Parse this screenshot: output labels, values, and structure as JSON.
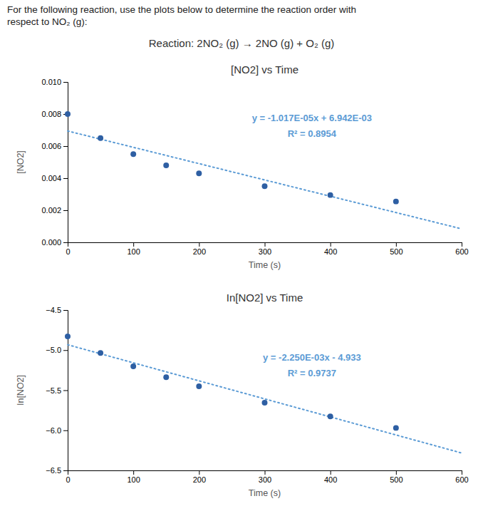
{
  "title": [
    "For the following reaction, use the plots below to determine the reaction order with",
    "respect to NO₂ (g):"
  ],
  "subtitle": "Reaction: 2NO₂ (g) → 2NO (g) + O₂ (g)",
  "chart_data": [
    {
      "type": "scatter",
      "title": "[NO2] vs Time",
      "x_label": "Time (s)",
      "y_label": "[NO2]",
      "series": [
        {
          "type": "scatter",
          "marker": "circle",
          "color": "#2e5fa3",
          "x": [
            0,
            50,
            100,
            150,
            200,
            300,
            400,
            500
          ],
          "values": [
            0.008,
            0.0065,
            0.0055,
            0.0048,
            0.0043,
            0.0035,
            0.00295,
            0.00255
          ]
        },
        {
          "type": "line",
          "line_style": "dotted",
          "color": "#5b9bd5",
          "x": [
            0,
            600
          ],
          "values": [
            0.006942,
            0.00084
          ]
        }
      ],
      "annotations": [
        "y = -1.017E-05x + 6.942E-03",
        "R² = 0.8954"
      ],
      "xlim": [
        0,
        600
      ],
      "ylim": [
        0.0,
        0.01
      ],
      "xticks": [
        0,
        100,
        200,
        300,
        400,
        500,
        600
      ],
      "yticks": [
        {
          "value": 0,
          "label": "0.000"
        },
        {
          "value": 0.002,
          "label": "0.002"
        },
        {
          "value": 0.004,
          "label": "0.004"
        },
        {
          "value": 0.006,
          "label": "0.006"
        },
        {
          "value": 0.008,
          "label": "0.008"
        },
        {
          "value": 0.01,
          "label": "0.010"
        }
      ],
      "grid": false
    },
    {
      "type": "scatter",
      "title": "In[NO2] vs Time",
      "x_label": "Time (s)",
      "y_label": "In[NO2]",
      "series": [
        {
          "type": "scatter",
          "marker": "circle",
          "color": "#2e5fa3",
          "x": [
            0,
            50,
            100,
            150,
            200,
            300,
            400,
            500
          ],
          "values": [
            -4.828,
            -5.035,
            -5.203,
            -5.338,
            -5.452,
            -5.655,
            -5.826,
            -5.97
          ]
        },
        {
          "type": "line",
          "line_style": "dotted",
          "color": "#5b9bd5",
          "x": [
            0,
            600
          ],
          "values": [
            -4.933,
            -6.283
          ]
        }
      ],
      "annotations": [
        "y = -2.250E-03x - 4.933",
        "R² = 0.9737"
      ],
      "xlim": [
        0,
        600
      ],
      "ylim": [
        -6.5,
        -4.5
      ],
      "xticks": [
        0,
        100,
        200,
        300,
        400,
        500,
        600
      ],
      "yticks": [
        {
          "value": -6.5,
          "label": "−6.5"
        },
        {
          "value": -6.0,
          "label": "−6.0"
        },
        {
          "value": -5.5,
          "label": "−5.5"
        },
        {
          "value": -5.0,
          "label": "−5.0"
        },
        {
          "value": -4.5,
          "label": "−4.5"
        }
      ],
      "grid": false
    }
  ]
}
